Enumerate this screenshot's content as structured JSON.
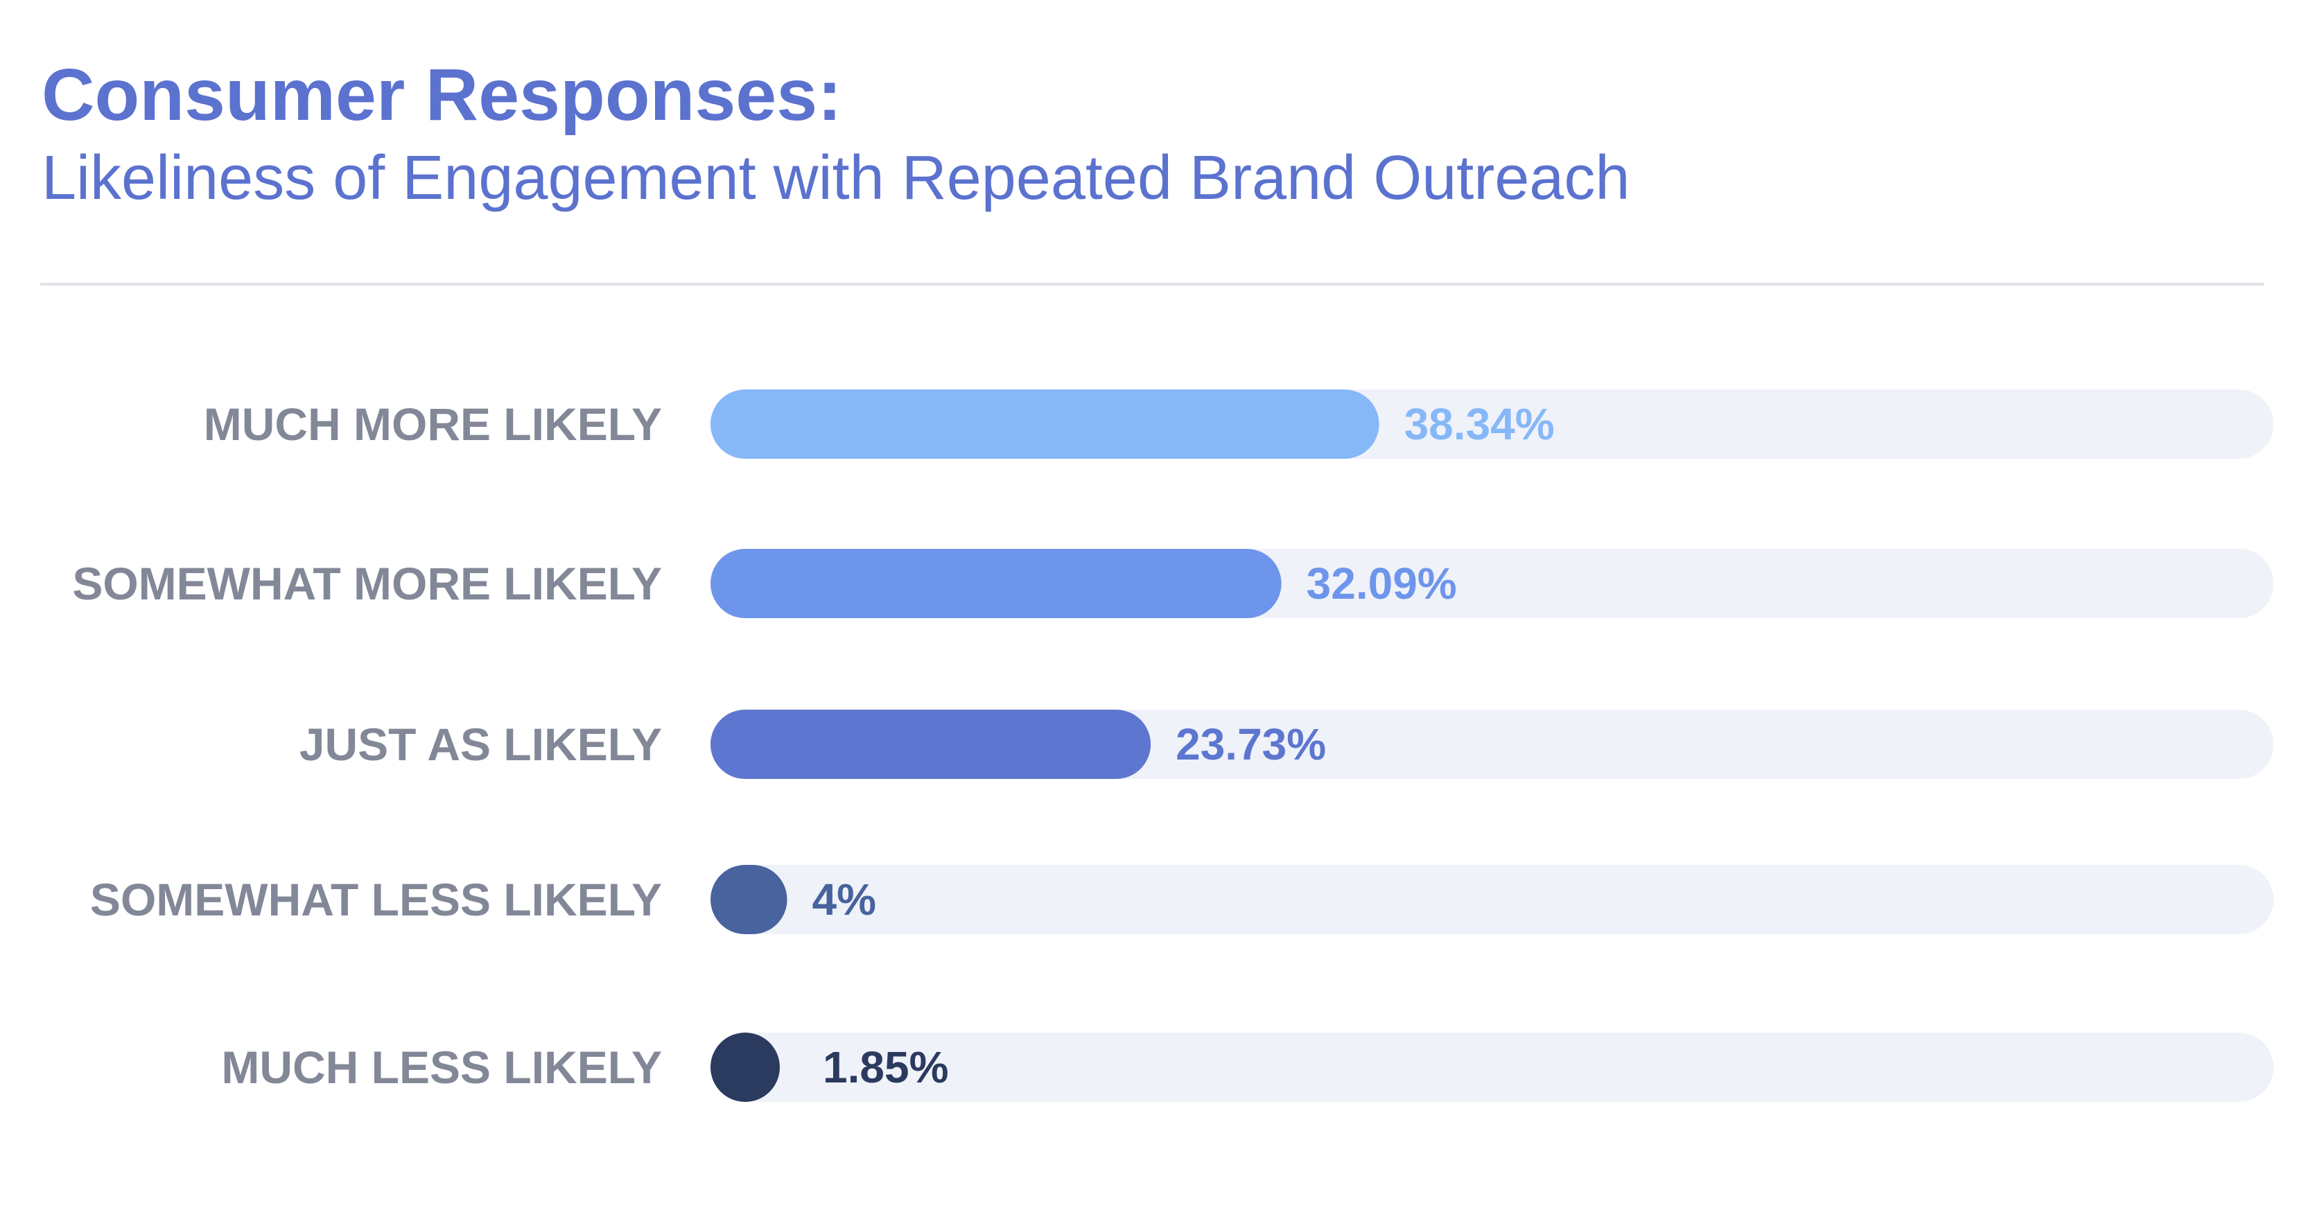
{
  "header": {
    "title": "Consumer Responses:",
    "subtitle": "Likeliness of Engagement with Repeated Brand Outreach"
  },
  "colors": {
    "title": "#5b72cf",
    "category_label": "#838898",
    "track": "#f0f2f9",
    "divider": "#e1e3e8"
  },
  "chart_data": {
    "type": "bar",
    "orientation": "horizontal",
    "categories": [
      "MUCH MORE LIKELY",
      "SOMEWHAT MORE LIKELY",
      "JUST AS LIKELY",
      "SOMEWHAT LESS LIKELY",
      "MUCH LESS LIKELY"
    ],
    "values": [
      38.34,
      32.09,
      23.73,
      4,
      1.85
    ],
    "value_labels": [
      "38.34%",
      "32.09%",
      "23.73%",
      "4%",
      "1.85%"
    ],
    "bar_colors": [
      "#86b8f8",
      "#6e95ec",
      "#5d76cf",
      "#48639d",
      "#2b3a5f"
    ],
    "xlim": [
      0,
      100
    ],
    "grid": false,
    "legend": "none"
  }
}
